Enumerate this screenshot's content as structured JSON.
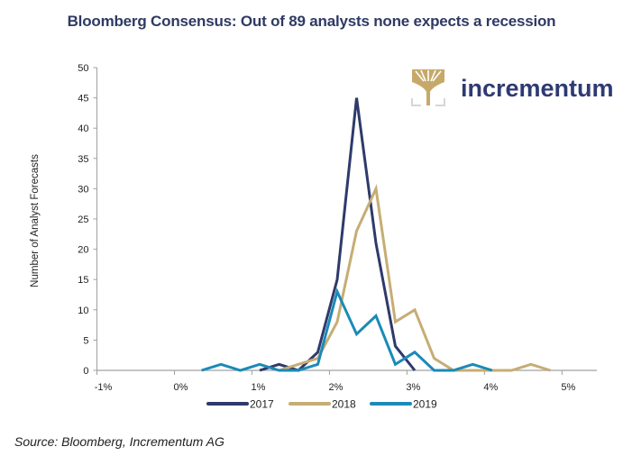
{
  "title": "Bloomberg Consensus: Out of 89 analysts none expects a recession",
  "source": "Source: Bloomberg, Incrementum AG",
  "logo": {
    "text": "incrementum",
    "icon": "tree-icon",
    "icon_color": "#c6a96a",
    "text_color": "#2e3a73"
  },
  "chart_data": {
    "type": "line",
    "title": "Bloomberg Consensus: Out of 89 analysts none expects a recession",
    "xlabel": "",
    "ylabel": "Number of Analyst Forecasts",
    "xlim": [
      -1,
      5.45
    ],
    "ylim": [
      0,
      50
    ],
    "x_ticks": [
      -1,
      0,
      1,
      2,
      3,
      4,
      5
    ],
    "x_tick_labels": [
      "-1%",
      "0%",
      "1%",
      "2%",
      "3%",
      "4%",
      "5%"
    ],
    "y_ticks": [
      0,
      5,
      10,
      15,
      20,
      25,
      30,
      35,
      40,
      45,
      50
    ],
    "y_tick_labels": [
      "0",
      "5",
      "10",
      "15",
      "20",
      "25",
      "30",
      "35",
      "40",
      "45",
      "50"
    ],
    "grid": false,
    "legend_position": "bottom",
    "series": [
      {
        "name": "2017",
        "color": "#2e3a6b",
        "x": [
          1.1,
          1.35,
          1.6,
          1.85,
          2.1,
          2.35,
          2.6,
          2.85,
          3.1
        ],
        "values": [
          0,
          1,
          0,
          3,
          15,
          45,
          21,
          4,
          0
        ]
      },
      {
        "name": "2018",
        "color": "#c6ad74",
        "x": [
          1.35,
          1.6,
          1.85,
          2.1,
          2.35,
          2.6,
          2.85,
          3.1,
          3.35,
          3.6,
          3.85,
          4.1,
          4.35,
          4.6,
          4.85
        ],
        "values": [
          0,
          1,
          2,
          8,
          23,
          30,
          8,
          10,
          2,
          0,
          0,
          0,
          0,
          1,
          0
        ]
      },
      {
        "name": "2019",
        "color": "#1b8ab8",
        "x": [
          0.35,
          0.6,
          0.85,
          1.1,
          1.35,
          1.6,
          1.85,
          2.1,
          2.35,
          2.6,
          2.85,
          3.1,
          3.35,
          3.6,
          3.85,
          4.1
        ],
        "values": [
          0,
          1,
          0,
          1,
          0,
          0,
          1,
          13,
          6,
          9,
          1,
          3,
          0,
          0,
          1,
          0
        ]
      }
    ]
  }
}
